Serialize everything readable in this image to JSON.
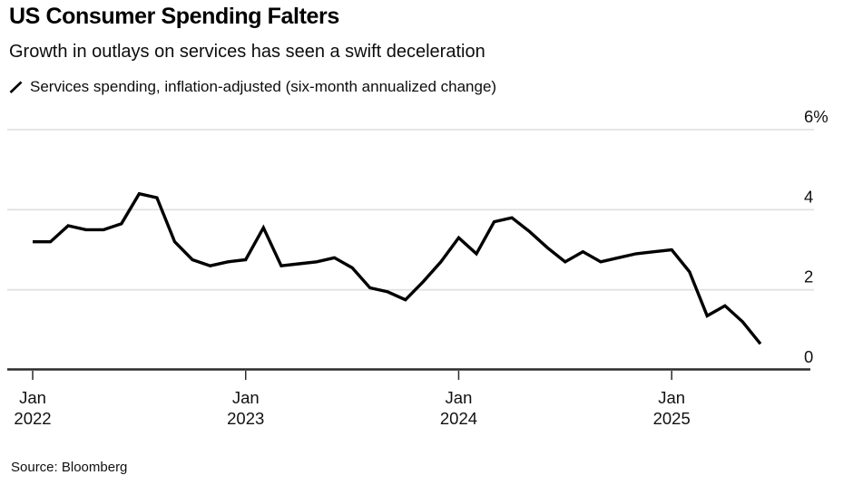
{
  "header": {
    "title": "US Consumer Spending Falters",
    "subtitle": "Growth in outlays on services has seen a swift deceleration",
    "legend": {
      "marker": "diagonal-line-marker",
      "label": "Services spending, inflation-adjusted (six-month annualized change)"
    }
  },
  "footer": {
    "source": "Source: Bloomberg"
  },
  "chart_data": {
    "type": "line",
    "title": "US Consumer Spending Falters",
    "subtitle": "Growth in outlays on services has seen a swift deceleration",
    "series_name": "Services spending, inflation-adjusted (six-month annualized change)",
    "unit": "%",
    "grid": "horizontal",
    "legend_position": "top-left",
    "ylim": [
      0,
      6
    ],
    "y_ticks": [
      {
        "value": 0,
        "label": "0"
      },
      {
        "value": 2,
        "label": "2"
      },
      {
        "value": 4,
        "label": "4"
      },
      {
        "value": 6,
        "label": "6%"
      }
    ],
    "x": [
      "Jan 2022",
      "Feb 2022",
      "Mar 2022",
      "Apr 2022",
      "May 2022",
      "Jun 2022",
      "Jul 2022",
      "Aug 2022",
      "Sep 2022",
      "Oct 2022",
      "Nov 2022",
      "Dec 2022",
      "Jan 2023",
      "Feb 2023",
      "Mar 2023",
      "Apr 2023",
      "May 2023",
      "Jun 2023",
      "Jul 2023",
      "Aug 2023",
      "Sep 2023",
      "Oct 2023",
      "Nov 2023",
      "Dec 2023",
      "Jan 2024",
      "Feb 2024",
      "Mar 2024",
      "Apr 2024",
      "May 2024",
      "Jun 2024",
      "Jul 2024",
      "Aug 2024",
      "Sep 2024",
      "Oct 2024",
      "Nov 2024",
      "Dec 2024",
      "Jan 2025",
      "Feb 2025",
      "Mar 2025",
      "Apr 2025",
      "May 2025",
      "Jun 2025"
    ],
    "values": [
      3.2,
      3.2,
      3.6,
      3.5,
      3.5,
      3.65,
      4.4,
      4.3,
      3.2,
      2.75,
      2.6,
      2.7,
      2.75,
      3.55,
      2.6,
      2.65,
      2.7,
      2.8,
      2.55,
      2.05,
      1.95,
      1.75,
      2.2,
      2.7,
      3.3,
      2.9,
      3.7,
      3.8,
      3.45,
      3.05,
      2.7,
      2.95,
      2.7,
      2.8,
      2.9,
      2.95,
      3.0,
      2.45,
      1.35,
      1.6,
      1.2,
      0.65
    ],
    "x_ticks": [
      {
        "index": 0,
        "line1": "Jan",
        "line2": "2022"
      },
      {
        "index": 12,
        "line1": "Jan",
        "line2": "2023"
      },
      {
        "index": 24,
        "line1": "Jan",
        "line2": "2024"
      },
      {
        "index": 36,
        "line1": "Jan",
        "line2": "2025"
      }
    ],
    "line_color": "#000000",
    "gridline_color": "#e2e2e2",
    "axis_color": "#2b2b2b",
    "label_color": "#111111"
  }
}
